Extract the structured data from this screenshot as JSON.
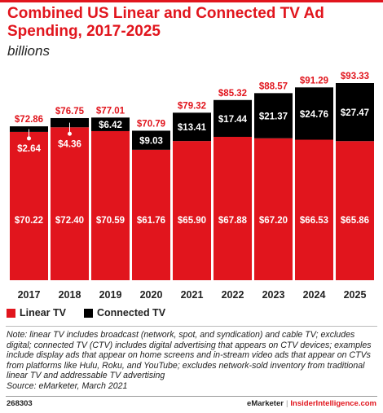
{
  "header": {
    "title": "Combined US Linear and Connected TV Ad Spending, 2017-2025",
    "subtitle": "billions"
  },
  "legend": [
    {
      "label": "Linear TV",
      "color": "#e1151d"
    },
    {
      "label": "Connected TV",
      "color": "#000000"
    }
  ],
  "chart_data": {
    "type": "bar",
    "stacked": true,
    "unit": "billions",
    "categories": [
      "2017",
      "2018",
      "2019",
      "2020",
      "2021",
      "2022",
      "2023",
      "2024",
      "2025"
    ],
    "series": [
      {
        "name": "Linear TV",
        "color": "#e1151d",
        "values": [
          70.22,
          72.4,
          70.59,
          61.76,
          65.9,
          67.88,
          67.2,
          66.53,
          65.86
        ],
        "labels": [
          "$70.22",
          "$72.40",
          "$70.59",
          "$61.76",
          "$65.90",
          "$67.88",
          "$67.20",
          "$66.53",
          "$65.86"
        ]
      },
      {
        "name": "Connected TV",
        "color": "#000000",
        "values": [
          2.64,
          4.36,
          6.42,
          9.03,
          13.41,
          17.44,
          21.37,
          24.76,
          27.47
        ],
        "labels": [
          "$2.64",
          "$4.36",
          "$6.42",
          "$9.03",
          "$13.41",
          "$17.44",
          "$21.37",
          "$24.76",
          "$27.47"
        ]
      }
    ],
    "totals": [
      72.86,
      76.75,
      77.01,
      70.79,
      79.32,
      85.32,
      88.57,
      91.29,
      93.33
    ],
    "total_labels": [
      "$72.86",
      "$76.75",
      "$77.01",
      "$70.79",
      "$79.32",
      "$85.32",
      "$88.57",
      "$91.29",
      "$93.33"
    ],
    "ylim": [
      0,
      93.33
    ],
    "grid": false,
    "legend_position": "bottom-left"
  },
  "note": "Note: linear TV includes broadcast (network, spot, and syndication) and cable TV; excludes digital; connected TV (CTV) includes digital advertising that appears on CTV devices; examples include display ads that appear on home screens and in-stream video ads that appear on CTVs from platforms like Hulu, Roku, and YouTube; excludes network-sold inventory from traditional linear TV and addressable TV advertising",
  "source": "Source: eMarketer, March 2021",
  "footer": {
    "chart_id": "268303",
    "brand": "eMarketer",
    "separator": "|",
    "site": "InsiderIntelligence.com"
  }
}
